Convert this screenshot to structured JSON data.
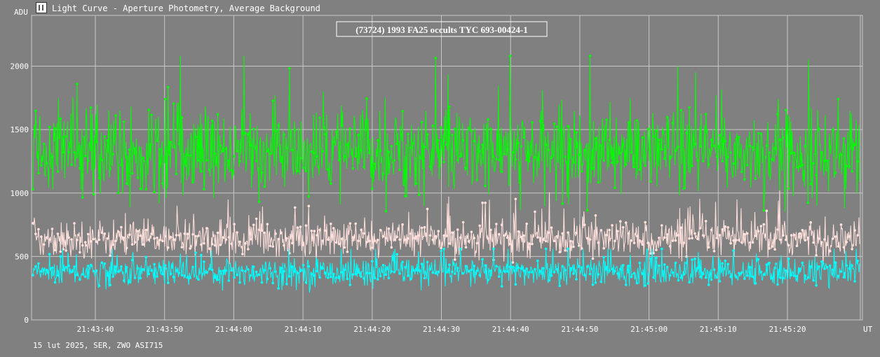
{
  "window": {
    "title": "Light Curve - Aperture Photometry, Average Background",
    "icon": "light-curve-app-icon"
  },
  "footer": {
    "text": "15 lut 2025, SER, ZWO ASI715"
  },
  "colors": {
    "background": "#808080",
    "grid": "#c8c8c8",
    "series_target": "#00ff00",
    "series_comparison": "#ffe0dc",
    "series_background": "#00ffff"
  },
  "chart_data": {
    "type": "line",
    "title": "(73724) 1993 FA25 occults TYC 693-00424-1",
    "ylabel": "ADU",
    "xlabel": "UT",
    "ylim": [
      0,
      2400
    ],
    "yticks": [
      0,
      500,
      1000,
      1500,
      2000
    ],
    "x_start_label": "21:43:29.6",
    "x_end_label": "21:45:29.8",
    "xticks": [
      "21:43:40",
      "21:43:50",
      "21:44:00",
      "21:44:10",
      "21:44:20",
      "21:44:30",
      "21:44:40",
      "21:44:50",
      "21:45:00",
      "21:45:10",
      "21:45:20"
    ],
    "grid": true,
    "legend": "none",
    "series": [
      {
        "color": "#00ff00",
        "mean": 1320,
        "spread": 160,
        "min": 820,
        "max": 2080
      },
      {
        "color": "#ffe0dc",
        "mean": 640,
        "spread": 70,
        "min": 440,
        "max": 1020
      },
      {
        "color": "#00ffff",
        "mean": 380,
        "spread": 55,
        "min": 160,
        "max": 560
      }
    ]
  }
}
